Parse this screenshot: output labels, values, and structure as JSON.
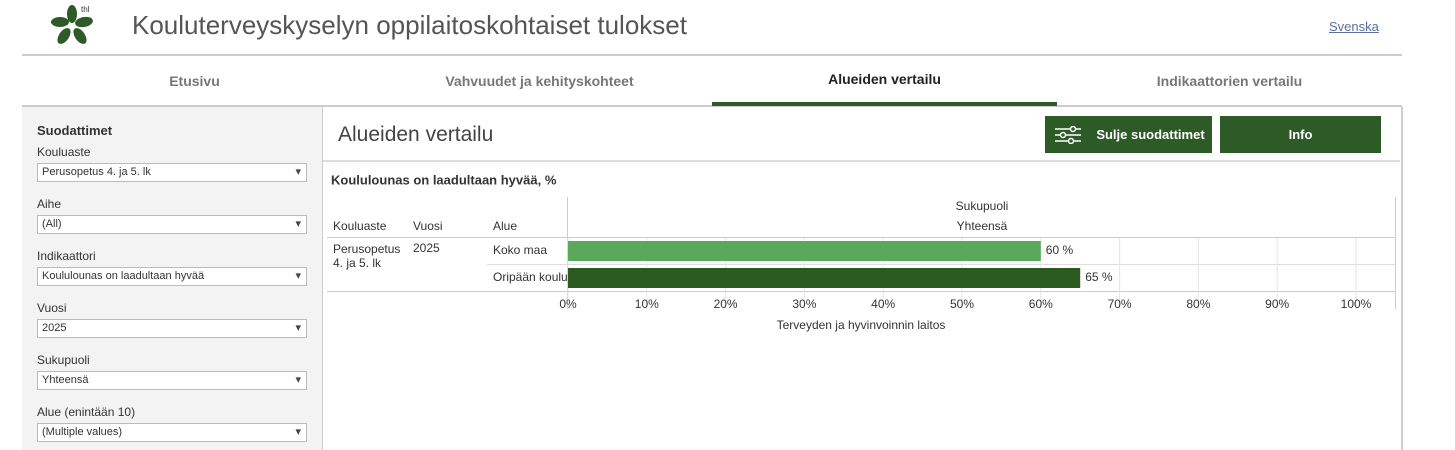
{
  "header": {
    "logo_text": "thl",
    "title": "Kouluterveyskyselyn oppilaitoskohtaiset tulokset",
    "language_link": "Svenska"
  },
  "tabs": [
    "Etusivu",
    "Vahvuudet ja kehityskohteet",
    "Alueiden vertailu",
    "Indikaattorien vertailu"
  ],
  "active_tab": 2,
  "sidebar": {
    "title": "Suodattimet",
    "filters": [
      {
        "label": "Kouluaste",
        "value": "Perusopetus 4. ja 5. lk"
      },
      {
        "label": "Aihe",
        "value": "(All)"
      },
      {
        "label": "Indikaattori",
        "value": "Koululounas on laadultaan hyvää"
      },
      {
        "label": "Vuosi",
        "value": "2025"
      },
      {
        "label": "Sukupuoli",
        "value": "Yhteensä"
      },
      {
        "label": "Alue (enintään 10)",
        "value": "(Multiple values)"
      }
    ]
  },
  "main": {
    "title": "Alueiden vertailu",
    "buttons": [
      "Sulje suodattimet",
      "Info"
    ]
  },
  "chart": {
    "type": "bar",
    "title": "Koululounas on laadultaan hyvää, %",
    "columns": [
      "Kouluaste",
      "Vuosi",
      "Alue"
    ],
    "group_header": "Sukupuoli",
    "series_header": "Yhteensä",
    "row": [
      "Perusopetus 4. ja 5. lk",
      "2025"
    ],
    "categories": [
      "Koko maa",
      "Oripään koulu"
    ],
    "values": [
      60,
      65
    ],
    "value_labels": [
      "60 %",
      "65 %"
    ],
    "colors": [
      "#59a95c",
      "#2a5a1f"
    ],
    "xlim": [
      0,
      100
    ],
    "xticks": [
      {
        "value": 0,
        "label": "0%"
      },
      {
        "value": 10,
        "label": "10%"
      },
      {
        "value": 20,
        "label": "20%"
      },
      {
        "value": 30,
        "label": "30%"
      },
      {
        "value": 40,
        "label": "40%"
      },
      {
        "value": 50,
        "label": "50%"
      },
      {
        "value": 60,
        "label": "60%"
      },
      {
        "value": 70,
        "label": "70%"
      },
      {
        "value": 80,
        "label": "80%"
      },
      {
        "value": 90,
        "label": "90%"
      },
      {
        "value": 100,
        "label": "100%"
      }
    ],
    "grid": true,
    "source": "Terveyden ja hyvinvoinnin laitos"
  }
}
